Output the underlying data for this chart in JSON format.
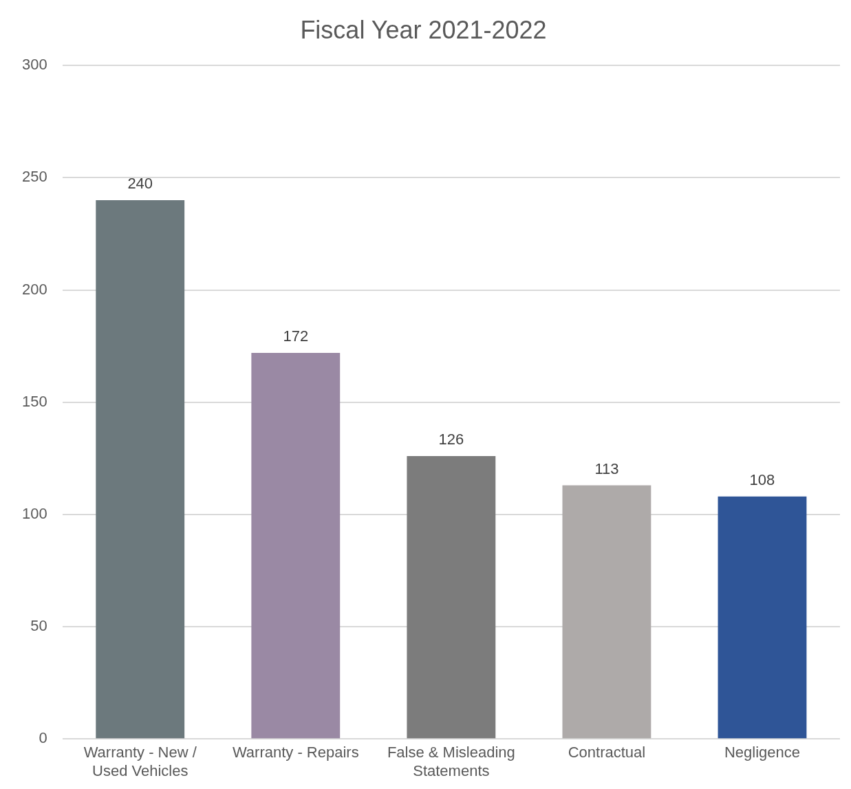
{
  "chart_data": {
    "type": "bar",
    "title": "Fiscal Year 2021-2022",
    "categories": [
      "Warranty - New / Used Vehicles",
      "Warranty - Repairs",
      "False & Misleading Statements",
      "Contractual",
      "Negligence"
    ],
    "values": [
      240,
      172,
      126,
      113,
      108
    ],
    "colors": [
      "#6c797d",
      "#9a89a4",
      "#7c7c7c",
      "#aeaaa9",
      "#2f5597"
    ],
    "ylim": [
      0,
      300
    ],
    "yticks": [
      0,
      50,
      100,
      150,
      200,
      250,
      300
    ],
    "grid": "y",
    "data_labels": true,
    "legend": false
  }
}
